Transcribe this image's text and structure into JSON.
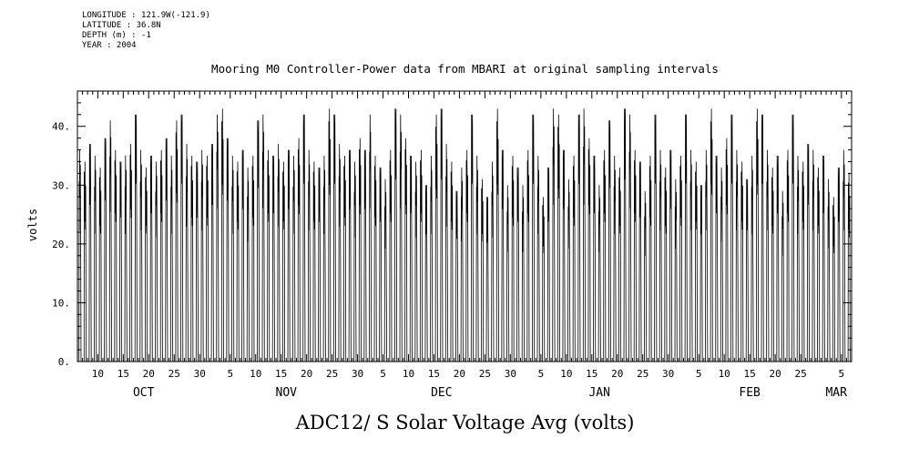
{
  "meta": {
    "longitude": "LONGITUDE : 121.9W(-121.9)",
    "latitude": "LATITUDE : 36.8N",
    "depth": "DEPTH (m) : -1",
    "year": "YEAR : 2004"
  },
  "chart_data": {
    "type": "line",
    "title": "Mooring M0 Controller-Power data from MBARI at original sampling intervals",
    "bottom_title": "ADC12/ S Solar Voltage Avg (volts)",
    "ylabel": "volts",
    "ylim": [
      0,
      46
    ],
    "y_major_ticks": [
      0,
      10,
      20,
      30,
      40
    ],
    "y_tick_labels": [
      "0.",
      "10.",
      "20.",
      "30.",
      "40."
    ],
    "y_minor_step": 2,
    "x_tick_day_step": 5,
    "grid": false,
    "line_color": "#000000",
    "months": [
      {
        "label": "OCT",
        "start_dom": 6,
        "days": 26
      },
      {
        "label": "NOV",
        "start_dom": 1,
        "days": 30
      },
      {
        "label": "DEC",
        "start_dom": 1,
        "days": 31
      },
      {
        "label": "JAN",
        "start_dom": 1,
        "days": 31
      },
      {
        "label": "FEB",
        "start_dom": 1,
        "days": 28
      },
      {
        "label": "MAR",
        "start_dom": 1,
        "days": 6
      }
    ],
    "series_description": "Daily solar-cycle voltage: 0 volts at night rising to the day's peak near midday",
    "daily_peaks": [
      36,
      34,
      37,
      35,
      33,
      38,
      41,
      36,
      34,
      35,
      37,
      42,
      36,
      33,
      35,
      34,
      36,
      38,
      35,
      41,
      42,
      37,
      35,
      34,
      36,
      35,
      37,
      42,
      43,
      38,
      35,
      34,
      36,
      33,
      35,
      41,
      42,
      36,
      35,
      37,
      34,
      36,
      35,
      38,
      42,
      36,
      34,
      33,
      35,
      43,
      42,
      37,
      35,
      36,
      34,
      38,
      36,
      42,
      35,
      33,
      31,
      36,
      43,
      42,
      38,
      35,
      34,
      36,
      30,
      35,
      42,
      43,
      37,
      34,
      29,
      33,
      36,
      42,
      35,
      31,
      28,
      34,
      43,
      36,
      30,
      35,
      33,
      30,
      36,
      42,
      35,
      28,
      33,
      43,
      42,
      36,
      31,
      35,
      42,
      43,
      38,
      35,
      30,
      36,
      41,
      35,
      33,
      43,
      42,
      36,
      34,
      29,
      35,
      42,
      36,
      33,
      36,
      31,
      35,
      42,
      36,
      34,
      30,
      36,
      43,
      35,
      33,
      38,
      42,
      36,
      34,
      31,
      35,
      43,
      42,
      36,
      33,
      35,
      29,
      36,
      42,
      35,
      34,
      37,
      36,
      33,
      35,
      31,
      28,
      33,
      36,
      32
    ]
  }
}
